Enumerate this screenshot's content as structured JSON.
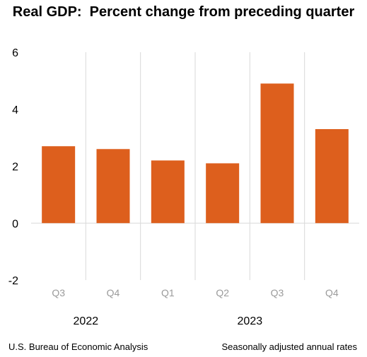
{
  "chart_data": {
    "type": "bar",
    "title": "Real GDP:  Percent change from preceding quarter",
    "categories": [
      "Q3",
      "Q4",
      "Q1",
      "Q2",
      "Q3",
      "Q4"
    ],
    "years": [
      {
        "label": "2022",
        "categories": [
          "Q3",
          "Q4"
        ]
      },
      {
        "label": "2023",
        "categories": [
          "Q1",
          "Q2",
          "Q3",
          "Q4"
        ]
      }
    ],
    "series": [
      {
        "values": [
          2.7,
          2.6,
          2.2,
          2.1,
          4.9,
          3.3
        ]
      }
    ],
    "ylim": [
      -2,
      6
    ],
    "yticks": [
      "-2",
      "0",
      "2",
      "4",
      "6"
    ],
    "xlabel": "",
    "ylabel": "",
    "grid": "vertical",
    "legend": "none"
  },
  "colors": {
    "bar": "#dd5f1d",
    "grid": "#d9d9d9",
    "category_label": "#9b9b9b",
    "axis_label": "#000000"
  },
  "footer": {
    "source": "U.S. Bureau of Economic Analysis",
    "note": "Seasonally adjusted annual rates"
  }
}
